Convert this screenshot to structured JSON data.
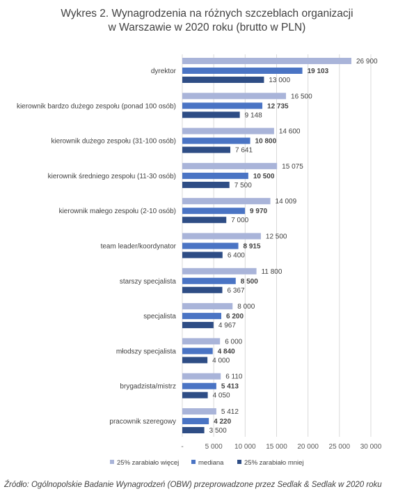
{
  "title_line1": "Wykres 2. Wynagrodzenia na różnych szczeblach organizacji",
  "title_line2": "w Warszawie w 2020 roku (brutto w PLN)",
  "source": "Źródło: Ogólnopolskie Badanie Wynagrodzeń (OBW) przeprowadzone przez Sedlak & Sedlak w 2020 roku",
  "chart_data": {
    "type": "bar",
    "orientation": "horizontal",
    "title": "Wykres 2. Wynagrodzenia na różnych szczeblach organizacji w Warszawie w 2020 roku (brutto w PLN)",
    "xlabel": "",
    "ylabel": "",
    "xlim": [
      0,
      30000
    ],
    "x_ticks": [
      "-",
      "5 000",
      "10 000",
      "15 000",
      "20 000",
      "25 000",
      "30 000"
    ],
    "grid": true,
    "legend_position": "bottom",
    "categories": [
      "dyrektor",
      "kierownik bardzo dużego zespołu (ponad 100 osób)",
      "kierownik dużego zespołu (31-100 osób)",
      "kierownik średniego zespołu (11-30 osób)",
      "kierownik małego zespołu (2-10 osób)",
      "team leader/koordynator",
      "starszy specjalista",
      "specjalista",
      "młodszy specjalista",
      "brygadzista/mistrz",
      "pracownik szeregowy"
    ],
    "series": [
      {
        "name": "25% zarabiało więcej",
        "color": "#a9b4d9",
        "bold_labels": false,
        "values": [
          26900,
          16500,
          14600,
          15075,
          14009,
          12500,
          11800,
          8000,
          6000,
          6110,
          5412
        ],
        "labels": [
          "26 900",
          "16 500",
          "14 600",
          "15 075",
          "14 009",
          "12 500",
          "11 800",
          "8 000",
          "6 000",
          "6 110",
          "5 412"
        ]
      },
      {
        "name": "mediana",
        "color": "#4a74c4",
        "bold_labels": true,
        "values": [
          19103,
          12735,
          10800,
          10500,
          9970,
          8915,
          8500,
          6200,
          4840,
          5413,
          4220
        ],
        "labels": [
          "19 103",
          "12 735",
          "10 800",
          "10 500",
          "9 970",
          "8 915",
          "8 500",
          "6 200",
          "4 840",
          "5 413",
          "4 220"
        ]
      },
      {
        "name": "25% zarabiało mniej",
        "color": "#2e4d85",
        "bold_labels": false,
        "values": [
          13000,
          9148,
          7641,
          7500,
          7000,
          6400,
          6367,
          4967,
          4000,
          4050,
          3500
        ],
        "labels": [
          "13 000",
          "9 148",
          "7 641",
          "7 500",
          "7 000",
          "6 400",
          "6 367",
          "4 967",
          "4 000",
          "4 050",
          "3 500"
        ]
      }
    ]
  }
}
